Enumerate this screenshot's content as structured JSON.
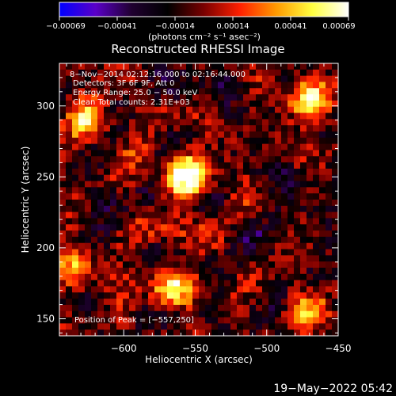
{
  "colorbar": {
    "tick_labels": [
      "−0.00069",
      "−0.00041",
      "−0.00014",
      "0.00014",
      "0.00041",
      "0.00069"
    ],
    "range": [
      -0.00069,
      0.00069
    ],
    "units": "(photons cm⁻² s⁻¹ asec⁻²)",
    "colormap": [
      "#0000ff",
      "#5a00c8",
      "#200030",
      "#000000",
      "#7a0000",
      "#ff2000",
      "#ff9a00",
      "#ffff40",
      "#ffffff"
    ]
  },
  "chart_data": {
    "type": "heatmap",
    "title": "Reconstructed RHESSI Image",
    "xlabel": "Heliocentric X (arcsec)",
    "ylabel": "Heliocentric Y (arcsec)",
    "xlim": [
      -645,
      -450
    ],
    "ylim": [
      138,
      330
    ],
    "xticks": [
      -600,
      -550,
      -500,
      -450
    ],
    "yticks": [
      150,
      200,
      250,
      300
    ],
    "xtick_labels": [
      "−600",
      "−550",
      "−500",
      "−450"
    ],
    "ytick_labels": [
      "150",
      "200",
      "250",
      "300"
    ],
    "annotations": [
      "8−Nov−2014 02:12:16.000 to 02:16:44.000",
      "Detectors: 3F 6F 9F, Att 0",
      "Energy Range: 25.0 − 50.0 keV",
      "Clean    Total counts: 2.31E+03"
    ],
    "peak_label": "Position of Peak = [−557,250]",
    "peak": [
      -557,
      250
    ],
    "sources": [
      {
        "x": -557,
        "y": 250,
        "amp": 1.0
      },
      {
        "x": -468,
        "y": 305,
        "amp": 0.75
      },
      {
        "x": -625,
        "y": 290,
        "amp": 0.65
      },
      {
        "x": -565,
        "y": 175,
        "amp": 0.7
      },
      {
        "x": -635,
        "y": 185,
        "amp": 0.55
      },
      {
        "x": -470,
        "y": 155,
        "amp": 0.5
      }
    ]
  },
  "timestamp": "19−May−2022 05:42"
}
